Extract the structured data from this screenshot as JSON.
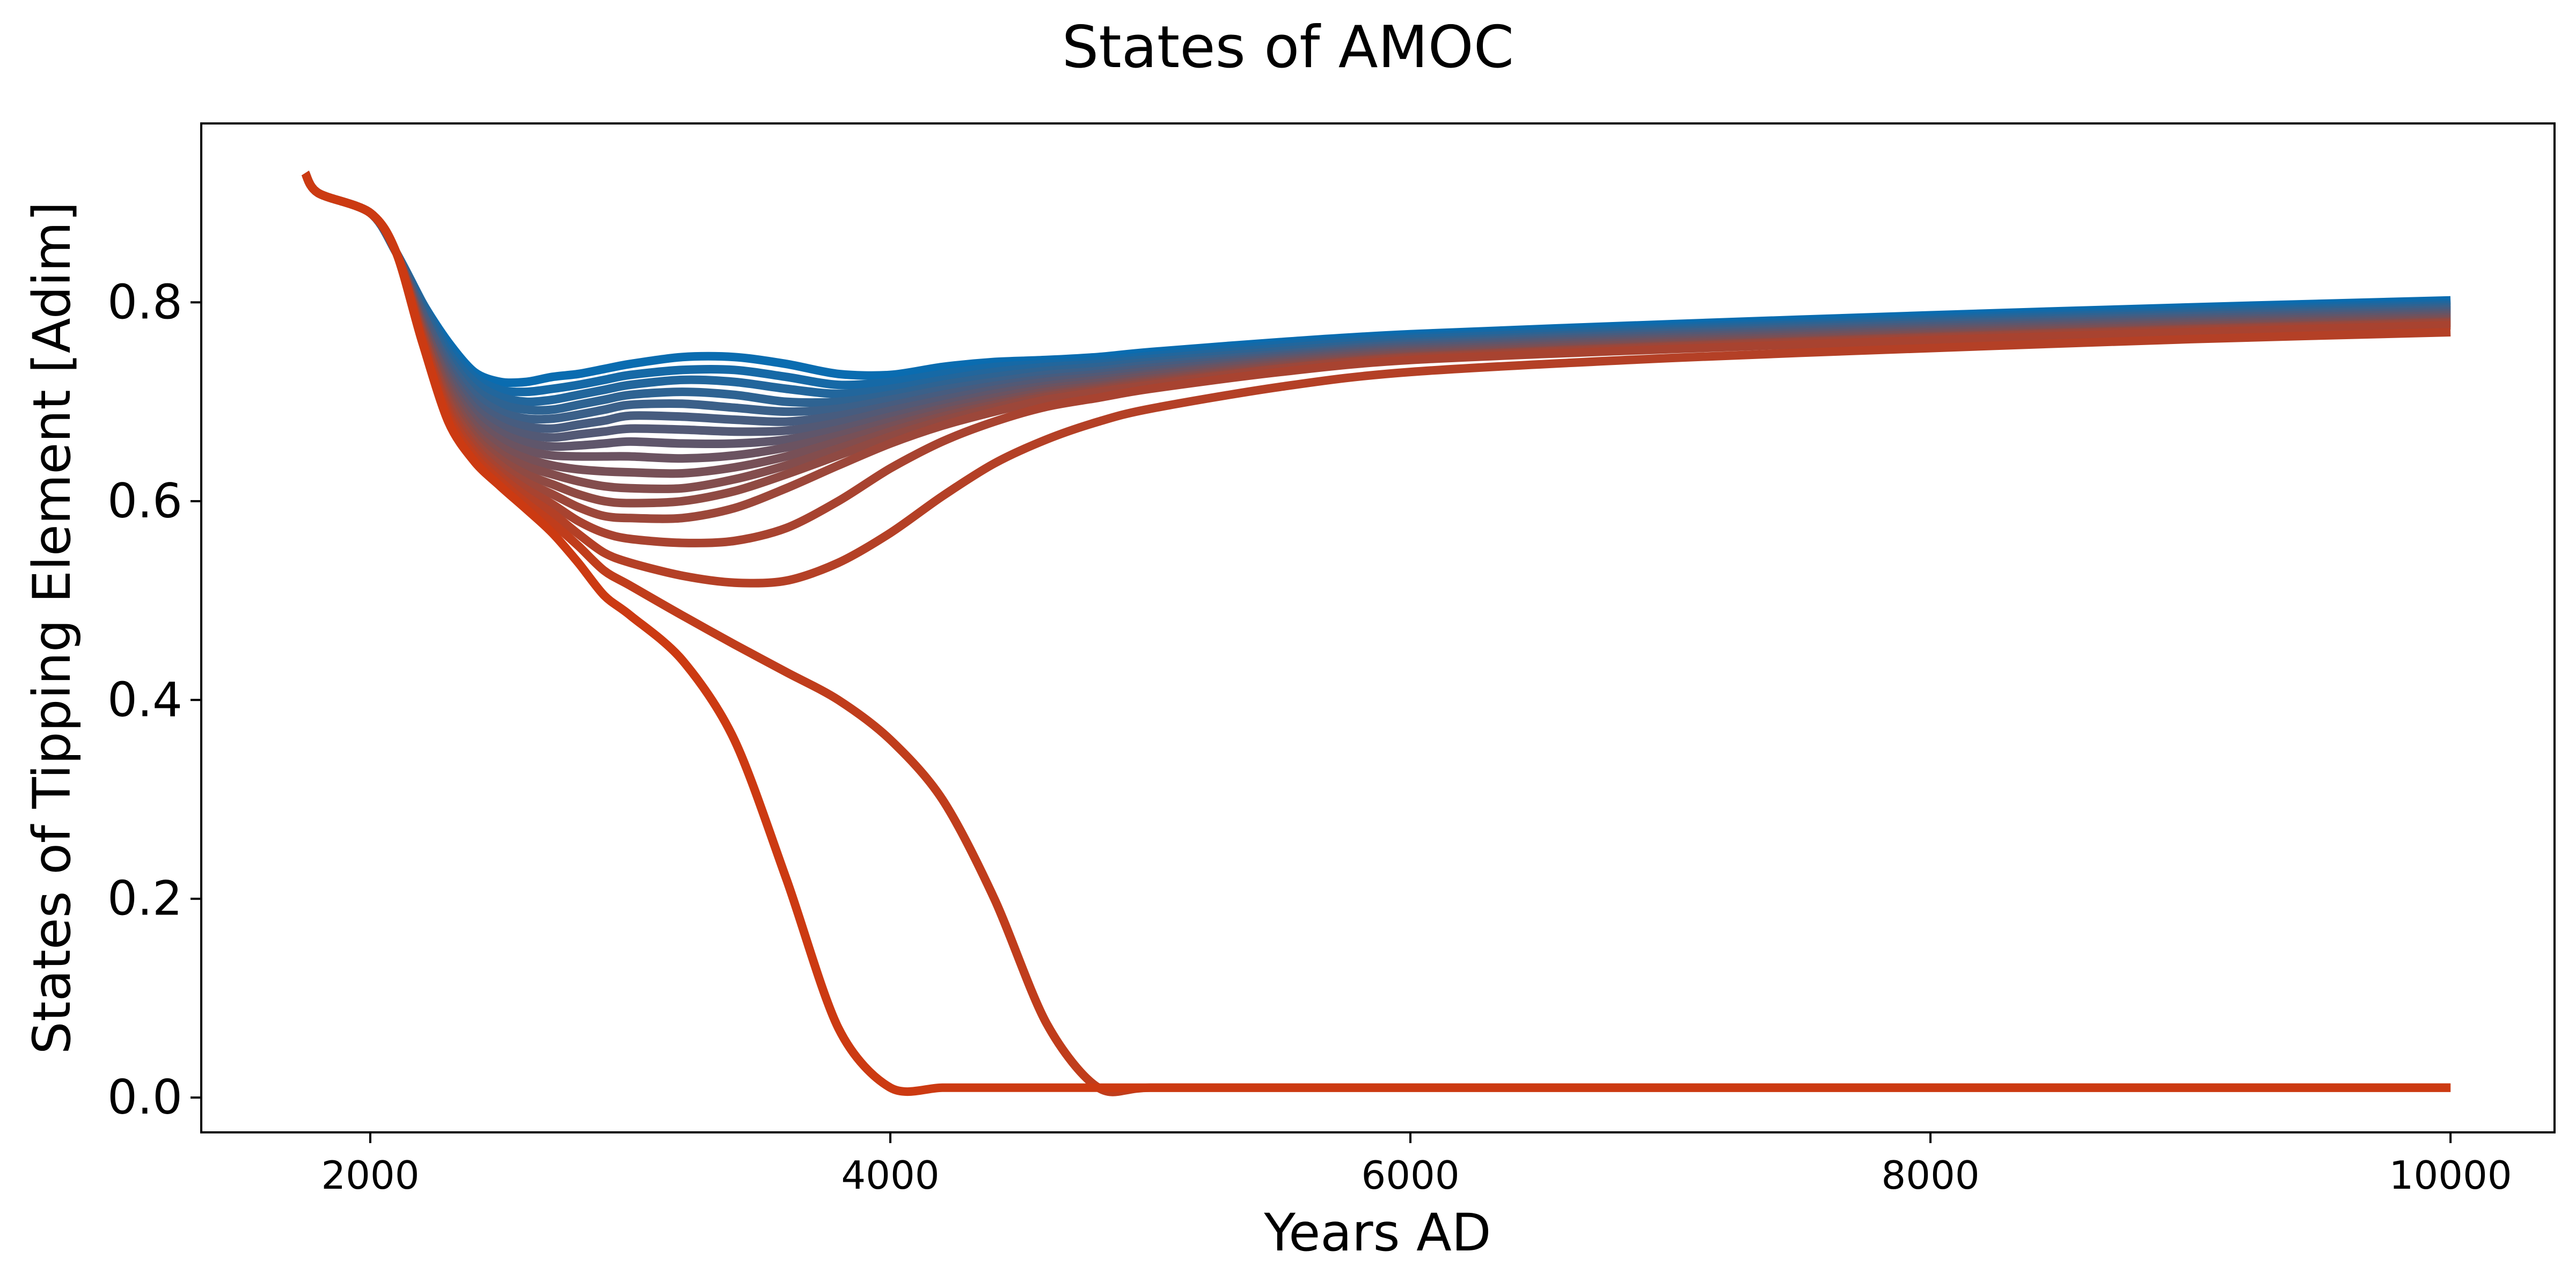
{
  "chart_data": {
    "type": "line",
    "title": "States of AMOC",
    "xlabel": "Years AD",
    "ylabel": "States of Tipping Element [Adim]",
    "xlim": [
      1350,
      10400
    ],
    "ylim": [
      -0.035,
      0.98
    ],
    "xticks": [
      2000,
      4000,
      6000,
      8000,
      10000
    ],
    "xtick_labels": [
      "2000",
      "4000",
      "6000",
      "8000",
      "10000"
    ],
    "yticks": [
      0.0,
      0.2,
      0.4,
      0.6,
      0.8
    ],
    "ytick_labels": [
      "0.0",
      "0.2",
      "0.4",
      "0.6",
      "0.8"
    ],
    "grid": false,
    "legend": "none",
    "color_start": "#0a6cb0",
    "color_end": "#cc3a12",
    "x": [
      1750,
      1800,
      2000,
      2100,
      2200,
      2300,
      2400,
      2500,
      2600,
      2700,
      2800,
      2900,
      3000,
      3200,
      3400,
      3600,
      3800,
      4000,
      4200,
      4400,
      4600,
      4800,
      5000,
      5500,
      6000,
      7000,
      8000,
      9000,
      10000
    ],
    "series": [
      {
        "values": [
          0.93,
          0.91,
          0.89,
          0.85,
          0.8,
          0.76,
          0.73,
          0.72,
          0.72,
          0.725,
          0.728,
          0.733,
          0.738,
          0.745,
          0.745,
          0.738,
          0.728,
          0.727,
          0.735,
          0.74,
          0.742,
          0.745,
          0.75,
          0.76,
          0.768,
          0.778,
          0.787,
          0.795,
          0.802
        ]
      },
      {
        "values": [
          0.93,
          0.91,
          0.89,
          0.85,
          0.8,
          0.755,
          0.725,
          0.712,
          0.71,
          0.713,
          0.717,
          0.722,
          0.727,
          0.732,
          0.732,
          0.725,
          0.717,
          0.72,
          0.728,
          0.735,
          0.738,
          0.741,
          0.746,
          0.757,
          0.765,
          0.775,
          0.784,
          0.792,
          0.799
        ]
      },
      {
        "values": [
          0.93,
          0.91,
          0.89,
          0.85,
          0.8,
          0.75,
          0.72,
          0.705,
          0.7,
          0.702,
          0.707,
          0.712,
          0.717,
          0.722,
          0.72,
          0.713,
          0.708,
          0.713,
          0.722,
          0.73,
          0.735,
          0.738,
          0.743,
          0.754,
          0.763,
          0.773,
          0.782,
          0.79,
          0.797
        ]
      },
      {
        "values": [
          0.93,
          0.91,
          0.89,
          0.85,
          0.795,
          0.745,
          0.713,
          0.698,
          0.692,
          0.692,
          0.697,
          0.702,
          0.707,
          0.71,
          0.707,
          0.7,
          0.7,
          0.707,
          0.717,
          0.725,
          0.731,
          0.735,
          0.74,
          0.751,
          0.76,
          0.771,
          0.78,
          0.788,
          0.795
        ]
      },
      {
        "values": [
          0.93,
          0.91,
          0.89,
          0.85,
          0.79,
          0.74,
          0.707,
          0.69,
          0.683,
          0.683,
          0.687,
          0.692,
          0.697,
          0.698,
          0.694,
          0.69,
          0.693,
          0.702,
          0.712,
          0.72,
          0.727,
          0.731,
          0.737,
          0.748,
          0.758,
          0.769,
          0.778,
          0.786,
          0.793
        ]
      },
      {
        "values": [
          0.93,
          0.91,
          0.89,
          0.85,
          0.79,
          0.735,
          0.7,
          0.683,
          0.675,
          0.673,
          0.677,
          0.681,
          0.686,
          0.685,
          0.682,
          0.68,
          0.686,
          0.696,
          0.707,
          0.716,
          0.723,
          0.728,
          0.734,
          0.746,
          0.756,
          0.767,
          0.776,
          0.784,
          0.791
        ]
      },
      {
        "values": [
          0.93,
          0.91,
          0.89,
          0.85,
          0.785,
          0.73,
          0.694,
          0.676,
          0.667,
          0.664,
          0.667,
          0.67,
          0.673,
          0.672,
          0.67,
          0.671,
          0.679,
          0.691,
          0.702,
          0.712,
          0.72,
          0.725,
          0.731,
          0.744,
          0.754,
          0.765,
          0.774,
          0.782,
          0.789
        ]
      },
      {
        "values": [
          0.93,
          0.91,
          0.89,
          0.85,
          0.78,
          0.725,
          0.688,
          0.669,
          0.659,
          0.655,
          0.656,
          0.658,
          0.66,
          0.658,
          0.658,
          0.662,
          0.672,
          0.685,
          0.697,
          0.708,
          0.716,
          0.722,
          0.728,
          0.742,
          0.752,
          0.763,
          0.772,
          0.78,
          0.787
        ]
      },
      {
        "values": [
          0.93,
          0.91,
          0.89,
          0.85,
          0.78,
          0.72,
          0.682,
          0.662,
          0.651,
          0.646,
          0.645,
          0.645,
          0.645,
          0.643,
          0.646,
          0.654,
          0.666,
          0.68,
          0.693,
          0.704,
          0.713,
          0.719,
          0.726,
          0.74,
          0.75,
          0.761,
          0.77,
          0.778,
          0.785
        ]
      },
      {
        "values": [
          0.93,
          0.91,
          0.89,
          0.85,
          0.775,
          0.715,
          0.676,
          0.655,
          0.643,
          0.636,
          0.632,
          0.63,
          0.629,
          0.628,
          0.634,
          0.645,
          0.66,
          0.675,
          0.689,
          0.7,
          0.71,
          0.716,
          0.723,
          0.738,
          0.748,
          0.759,
          0.768,
          0.776,
          0.783
        ]
      },
      {
        "values": [
          0.93,
          0.91,
          0.89,
          0.85,
          0.775,
          0.71,
          0.67,
          0.648,
          0.635,
          0.627,
          0.62,
          0.615,
          0.613,
          0.613,
          0.622,
          0.636,
          0.653,
          0.67,
          0.685,
          0.697,
          0.707,
          0.714,
          0.721,
          0.736,
          0.746,
          0.757,
          0.766,
          0.774,
          0.781
        ]
      },
      {
        "values": [
          0.93,
          0.91,
          0.89,
          0.85,
          0.77,
          0.705,
          0.665,
          0.642,
          0.627,
          0.617,
          0.607,
          0.6,
          0.598,
          0.6,
          0.61,
          0.627,
          0.646,
          0.665,
          0.681,
          0.694,
          0.705,
          0.712,
          0.719,
          0.734,
          0.745,
          0.756,
          0.765,
          0.773,
          0.78
        ]
      },
      {
        "values": [
          0.93,
          0.91,
          0.89,
          0.85,
          0.77,
          0.7,
          0.66,
          0.636,
          0.619,
          0.607,
          0.594,
          0.585,
          0.583,
          0.583,
          0.593,
          0.613,
          0.636,
          0.658,
          0.676,
          0.69,
          0.702,
          0.71,
          0.717,
          0.733,
          0.744,
          0.755,
          0.764,
          0.772,
          0.779
        ]
      },
      {
        "values": [
          0.93,
          0.91,
          0.89,
          0.85,
          0.765,
          0.695,
          0.655,
          0.63,
          0.612,
          0.597,
          0.58,
          0.568,
          0.562,
          0.558,
          0.56,
          0.573,
          0.6,
          0.633,
          0.66,
          0.68,
          0.695,
          0.704,
          0.713,
          0.73,
          0.742,
          0.753,
          0.762,
          0.77,
          0.777
        ]
      },
      {
        "values": [
          0.93,
          0.91,
          0.89,
          0.85,
          0.765,
          0.69,
          0.65,
          0.625,
          0.605,
          0.588,
          0.567,
          0.548,
          0.538,
          0.525,
          0.518,
          0.52,
          0.538,
          0.568,
          0.605,
          0.638,
          0.662,
          0.68,
          0.693,
          0.715,
          0.73,
          0.744,
          0.754,
          0.763,
          0.77
        ]
      },
      {
        "values": [
          0.93,
          0.91,
          0.89,
          0.85,
          0.76,
          0.685,
          0.645,
          0.62,
          0.598,
          0.578,
          0.555,
          0.53,
          0.515,
          0.485,
          0.456,
          0.428,
          0.4,
          0.36,
          0.3,
          0.2,
          0.075,
          0.01,
          0.01,
          0.01,
          0.01,
          0.01,
          0.01,
          0.01,
          0.01
        ]
      },
      {
        "values": [
          0.93,
          0.91,
          0.89,
          0.85,
          0.76,
          0.68,
          0.64,
          0.615,
          0.592,
          0.568,
          0.538,
          0.505,
          0.485,
          0.44,
          0.36,
          0.22,
          0.07,
          0.01,
          0.01,
          0.01,
          0.01,
          0.01,
          0.01,
          0.01,
          0.01,
          0.01,
          0.01,
          0.01,
          0.01
        ]
      }
    ]
  }
}
